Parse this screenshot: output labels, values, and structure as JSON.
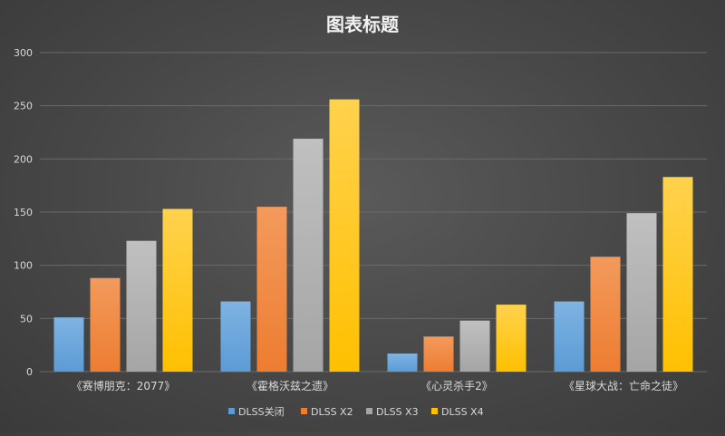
{
  "chart_data": {
    "type": "bar",
    "title": "图表标题",
    "xlabel": "",
    "ylabel": "",
    "categories": [
      "《赛博朋克：2077》",
      "《霍格沃兹之遗》",
      "《心灵杀手2》",
      "《星球大战：亡命之徒》"
    ],
    "series": [
      {
        "name": "DLSS关闭",
        "values": [
          51,
          66,
          17,
          66
        ]
      },
      {
        "name": "DLSS X2",
        "values": [
          88,
          155,
          33,
          108
        ]
      },
      {
        "name": "DLSS X3",
        "values": [
          123,
          219,
          48,
          149
        ]
      },
      {
        "name": "DLSS X4",
        "values": [
          153,
          256,
          63,
          183
        ]
      }
    ],
    "ylim": [
      0,
      300
    ],
    "yticks": [
      "0",
      "50",
      "100",
      "150",
      "200",
      "250",
      "300"
    ],
    "grid": true,
    "legend": "bottom",
    "colors": {
      "series": [
        "#5b9bd5",
        "#ed7d31",
        "#a5a5a5",
        "#ffc000"
      ],
      "series_light": [
        "#7fb3e3",
        "#f39a5c",
        "#c0c0c0",
        "#ffd24d"
      ],
      "grid": "#6a6a6a",
      "text": "#d9d9d9",
      "title": "#f2f2f2"
    }
  }
}
